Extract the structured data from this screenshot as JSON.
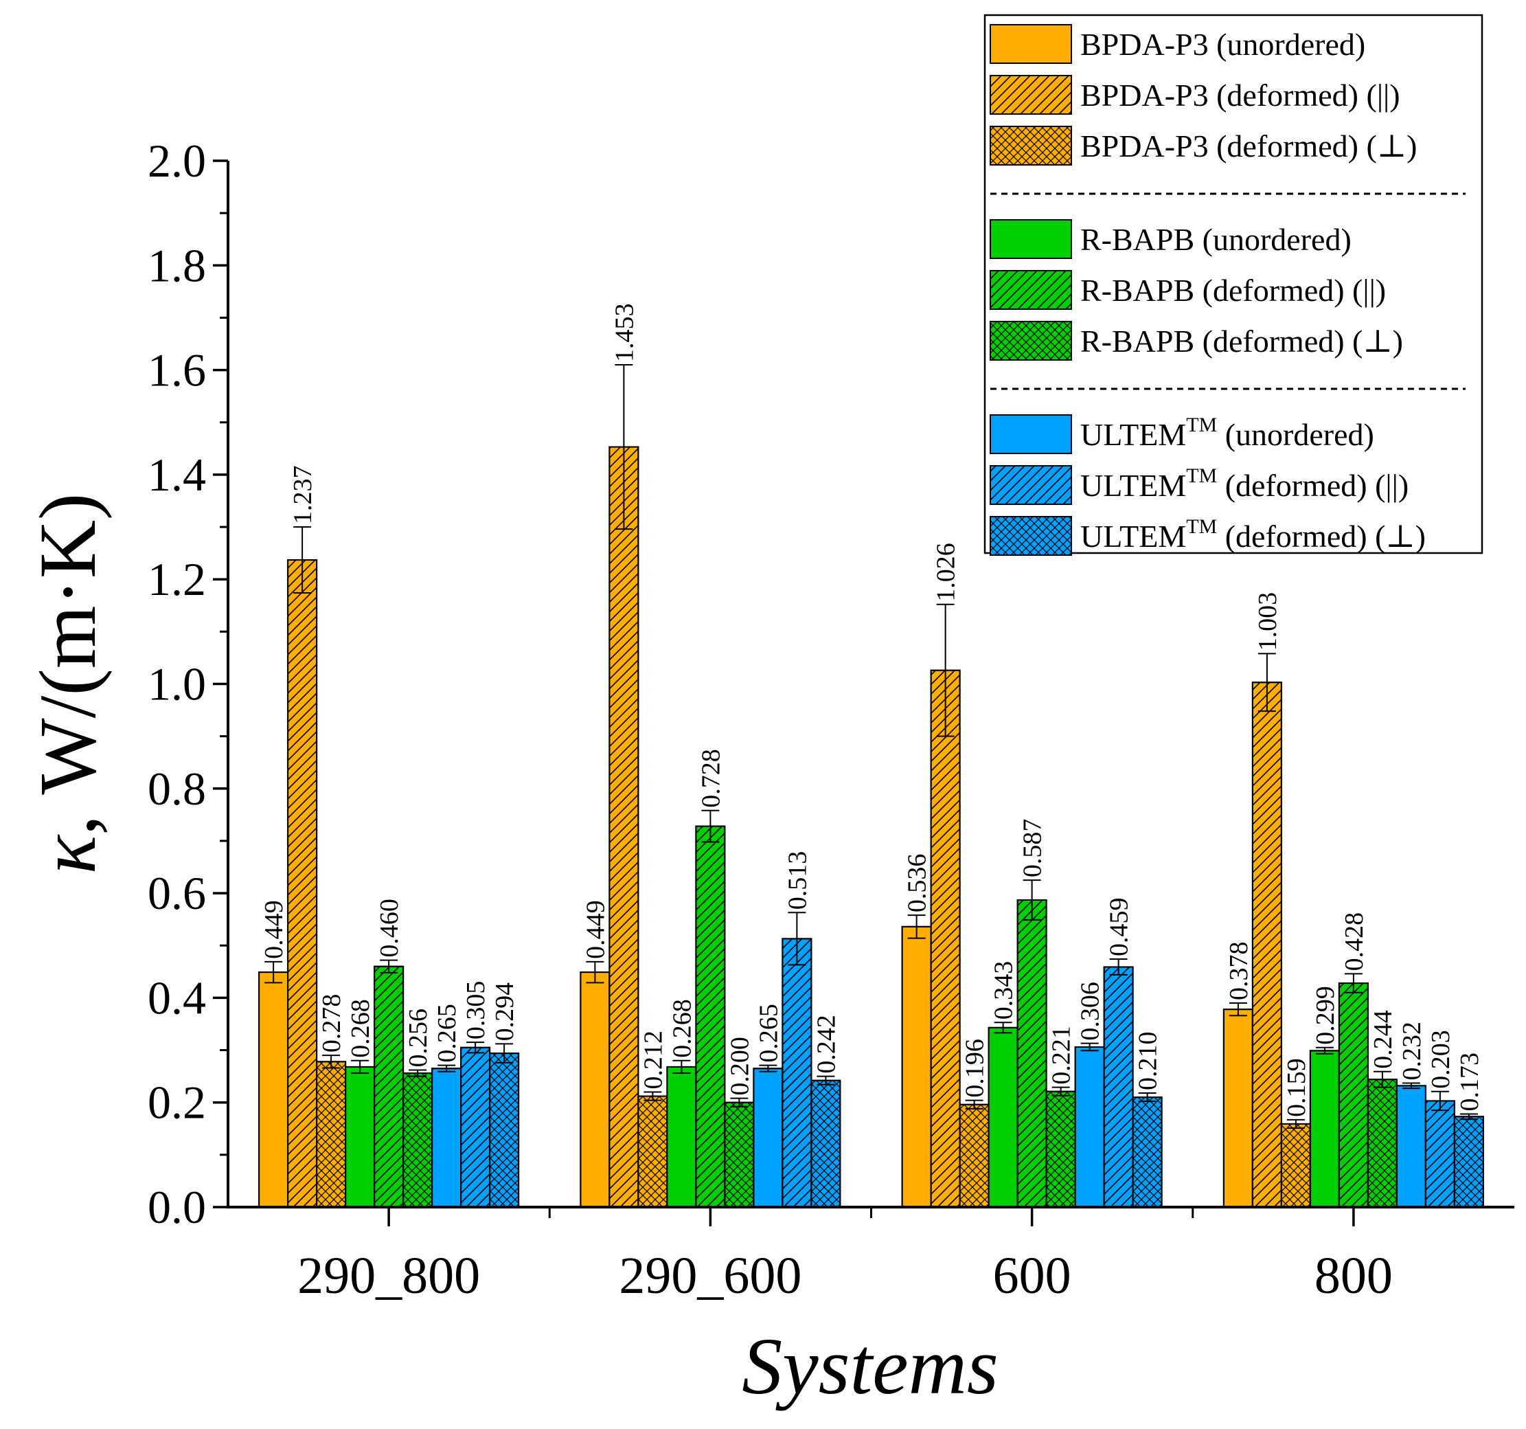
{
  "chart_data": {
    "type": "bar",
    "xlabel": "Systems",
    "ylabel": {
      "symbol": "κ",
      "unit": ", W/(m·K)"
    },
    "ylim": [
      0,
      2.0
    ],
    "yticks": [
      "0.0",
      "0.2",
      "0.4",
      "0.6",
      "0.8",
      "1.0",
      "1.2",
      "1.4",
      "1.6",
      "1.8",
      "2.0"
    ],
    "categories": [
      "290_800",
      "290_600",
      "600",
      "800"
    ],
    "grid": false,
    "legend_position": "top-right",
    "colors": {
      "BPDA-P3": "#FFAE00",
      "R-BAPB": "#00D000",
      "ULTEM": "#00A2FF"
    },
    "series": [
      {
        "name": "BPDA-P3 (unordered)",
        "group": "BPDA-P3",
        "pattern": "solid",
        "values": [
          0.449,
          0.449,
          0.536,
          0.378
        ],
        "labels": [
          "0.449",
          "0.449",
          "0.536",
          "0.378"
        ],
        "errors": [
          0.02,
          0.02,
          0.022,
          0.012
        ]
      },
      {
        "name": "BPDA-P3 (deformed) (||)",
        "group": "BPDA-P3",
        "pattern": "hatch",
        "values": [
          1.237,
          1.453,
          1.026,
          1.003
        ],
        "labels": [
          "1.237",
          "1.453",
          "1.026",
          "1.003"
        ],
        "errors": [
          0.063,
          0.157,
          0.126,
          0.055
        ]
      },
      {
        "name": "BPDA-P3 (deformed) (⊥)",
        "group": "BPDA-P3",
        "pattern": "cross",
        "values": [
          0.278,
          0.212,
          0.196,
          0.159
        ],
        "labels": [
          "0.278",
          "0.212",
          "0.196",
          "0.159"
        ],
        "errors": [
          0.012,
          0.008,
          0.008,
          0.008
        ]
      },
      {
        "name": "R-BAPB (unordered)",
        "group": "R-BAPB",
        "pattern": "solid",
        "values": [
          0.268,
          0.268,
          0.343,
          0.299
        ],
        "labels": [
          "0.268",
          "0.268",
          "0.343",
          "0.299"
        ],
        "errors": [
          0.012,
          0.012,
          0.01,
          0.006
        ]
      },
      {
        "name": "R-BAPB (deformed) (||)",
        "group": "R-BAPB",
        "pattern": "hatch",
        "values": [
          0.46,
          0.728,
          0.587,
          0.428
        ],
        "labels": [
          "0.460",
          "0.728",
          "0.587",
          "0.428"
        ],
        "errors": [
          0.012,
          0.03,
          0.038,
          0.018
        ]
      },
      {
        "name": "R-BAPB (deformed) (⊥)",
        "group": "R-BAPB",
        "pattern": "cross",
        "values": [
          0.256,
          0.2,
          0.221,
          0.244
        ],
        "labels": [
          "0.256",
          "0.200",
          "0.221",
          "0.244"
        ],
        "errors": [
          0.006,
          0.008,
          0.008,
          0.015
        ]
      },
      {
        "name": "ULTEM (unordered)",
        "group": "ULTEM",
        "pattern": "solid",
        "values": [
          0.265,
          0.265,
          0.306,
          0.232
        ],
        "labels": [
          "0.265",
          "0.265",
          "0.306",
          "0.232"
        ],
        "errors": [
          0.006,
          0.006,
          0.007,
          0.005
        ]
      },
      {
        "name": "ULTEM (deformed) (||)",
        "group": "ULTEM",
        "pattern": "hatch",
        "values": [
          0.305,
          0.513,
          0.459,
          0.203
        ],
        "labels": [
          "0.305",
          "0.513",
          "0.459",
          "0.203"
        ],
        "errors": [
          0.01,
          0.05,
          0.015,
          0.018
        ]
      },
      {
        "name": "ULTEM (deformed) (⊥)",
        "group": "ULTEM",
        "pattern": "cross",
        "values": [
          0.294,
          0.242,
          0.21,
          0.173
        ],
        "labels": [
          "0.294",
          "0.242",
          "0.210",
          "0.173"
        ],
        "errors": [
          0.018,
          0.008,
          0.008,
          0.005
        ]
      }
    ],
    "legend": {
      "entries": [
        {
          "base": "BPDA-P3",
          "sup": "",
          "suffix": " (unordered)",
          "series": 0
        },
        {
          "base": "BPDA-P3",
          "sup": "",
          "suffix": " (deformed) (||)",
          "series": 1
        },
        {
          "base": "BPDA-P3",
          "sup": "",
          "suffix": " (deformed) (⊥)",
          "series": 2
        },
        {
          "separator": true
        },
        {
          "base": "R-BAPB",
          "sup": "",
          "suffix": " (unordered)",
          "series": 3
        },
        {
          "base": "R-BAPB",
          "sup": "",
          "suffix": " (deformed) (||)",
          "series": 4
        },
        {
          "base": "R-BAPB",
          "sup": "",
          "suffix": " (deformed) (⊥)",
          "series": 5
        },
        {
          "separator": true
        },
        {
          "base": "ULTEM",
          "sup": "TM",
          "suffix": " (unordered)",
          "series": 6
        },
        {
          "base": "ULTEM",
          "sup": "TM",
          "suffix": " (deformed) (||)",
          "series": 7
        },
        {
          "base": "ULTEM",
          "sup": "TM",
          "suffix": " (deformed) (⊥)",
          "series": 8
        }
      ]
    }
  }
}
